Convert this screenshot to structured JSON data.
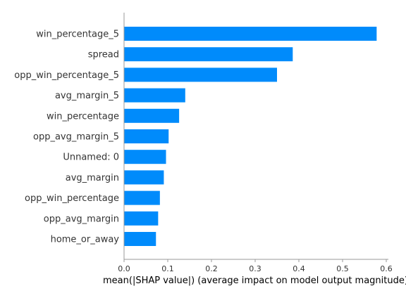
{
  "chart_data": {
    "type": "bar",
    "orientation": "horizontal",
    "categories": [
      "win_percentage_5",
      "spread",
      "opp_win_percentage_5",
      "avg_margin_5",
      "win_percentage",
      "opp_avg_margin_5",
      "Unnamed: 0",
      "avg_margin",
      "opp_win_percentage",
      "opp_avg_margin",
      "home_or_away"
    ],
    "values": [
      0.578,
      0.386,
      0.35,
      0.14,
      0.126,
      0.102,
      0.096,
      0.091,
      0.082,
      0.078,
      0.073
    ],
    "xlabel": "mean(|SHAP value|) (average impact on model output magnitude)",
    "ylabel": "",
    "title": "",
    "xlim": [
      0,
      0.6
    ],
    "xticks": [
      "0.0",
      "0.1",
      "0.2",
      "0.3",
      "0.4",
      "0.5",
      "0.6"
    ],
    "xtick_values": [
      0.0,
      0.1,
      0.2,
      0.3,
      0.4,
      0.5,
      0.6
    ],
    "grid": false,
    "bar_color": "#008bfb",
    "axis_color": "#999999"
  }
}
